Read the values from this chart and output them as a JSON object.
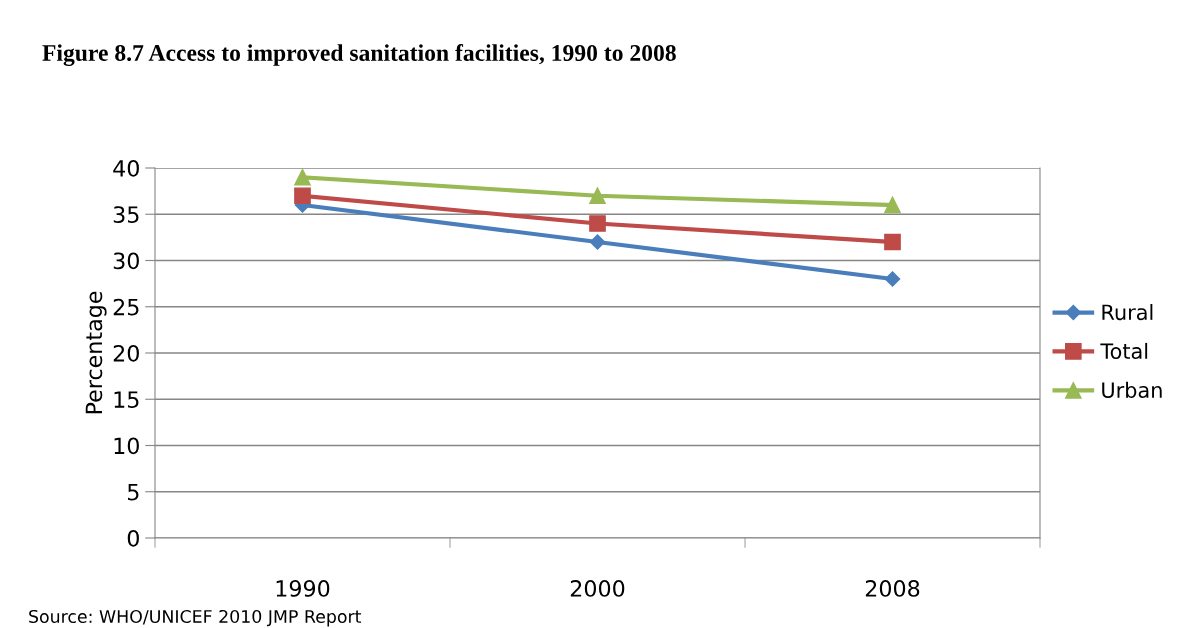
{
  "chart_data": {
    "type": "line",
    "title": "Figure 8.7 Access to improved sanitation facilities, 1990 to 2008",
    "ylabel": "Percentage",
    "categories": [
      "1990",
      "2000",
      "2008"
    ],
    "series": [
      {
        "name": "Rural",
        "color": "#4a7ebb",
        "marker": "diamond",
        "values": [
          36,
          32,
          28
        ]
      },
      {
        "name": "Total",
        "color": "#be4b48",
        "marker": "square",
        "values": [
          37,
          34,
          32
        ]
      },
      {
        "name": "Urban",
        "color": "#98b954",
        "marker": "triangle",
        "values": [
          39,
          37,
          36
        ]
      }
    ],
    "ylim": [
      0,
      40
    ],
    "yticks": [
      0,
      5,
      10,
      15,
      20,
      25,
      30,
      35,
      40
    ],
    "grid": "y",
    "legend": "right",
    "line_style": "solid",
    "annotations": [
      "Source: WHO/UNICEF 2010 JMP Report"
    ]
  }
}
